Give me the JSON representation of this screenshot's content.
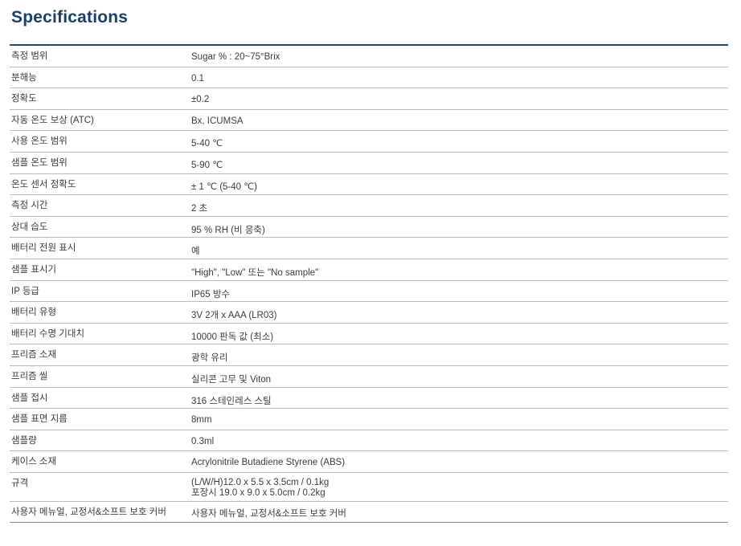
{
  "title": "Specifications",
  "rows": [
    {
      "label": "측정 범위",
      "value": "Sugar % : 20~75°Brix"
    },
    {
      "label": "분해능",
      "value": "0.1"
    },
    {
      "label": "정확도",
      "value": "±0.2"
    },
    {
      "label": "자동 온도 보상 (ATC)",
      "value": "Bx, ICUMSA"
    },
    {
      "label": "사용 온도 범위",
      "value": "5-40 ℃"
    },
    {
      "label": "샘플 온도 범위",
      "value": "5-90 ℃"
    },
    {
      "label": "온도 센서 정확도",
      "value": "± 1 ℃ (5-40 ℃)"
    },
    {
      "label": "측정 시간",
      "value": "2 초"
    },
    {
      "label": "상대 습도",
      "value": "95 % RH (비 응축)"
    },
    {
      "label": "배터리 전원 표시",
      "value": "예"
    },
    {
      "label": "샘플 표시기",
      "value": "\"High\", \"Low\" 또는 \"No sample\""
    },
    {
      "label": "IP 등급",
      "value": "IP65 방수"
    },
    {
      "label": "배터리 유형",
      "value": "3V 2개 x AAA (LR03)"
    },
    {
      "label": "배터리 수명 기대치",
      "value": "10000 판독 값 (최소)"
    },
    {
      "label": "프리즘 소재",
      "value": "광학 유리"
    },
    {
      "label": "프리즘 씰",
      "value": "실리콘 고무 및 Viton"
    },
    {
      "label": "샘플 접시",
      "value": "316 스테인레스 스틸"
    },
    {
      "label": "샘플 표면 지름",
      "value": "8mm"
    },
    {
      "label": "샘플량",
      "value": "0.3ml"
    },
    {
      "label": "케이스 소재",
      "value": "Acrylonitrile Butadiene Styrene (ABS)"
    },
    {
      "label": "규격",
      "value_lines": [
        "(L/W/H)12.0 x 5.5 x 3.5cm / 0.1kg",
        "포장시 19.0 x 9.0 x 5.0cm / 0.2kg"
      ]
    },
    {
      "label": "사용자 메뉴얼, 교정서&소프트 보호 커버",
      "value": "사용자 메뉴얼, 교정서&소프트 보호 커버"
    }
  ]
}
